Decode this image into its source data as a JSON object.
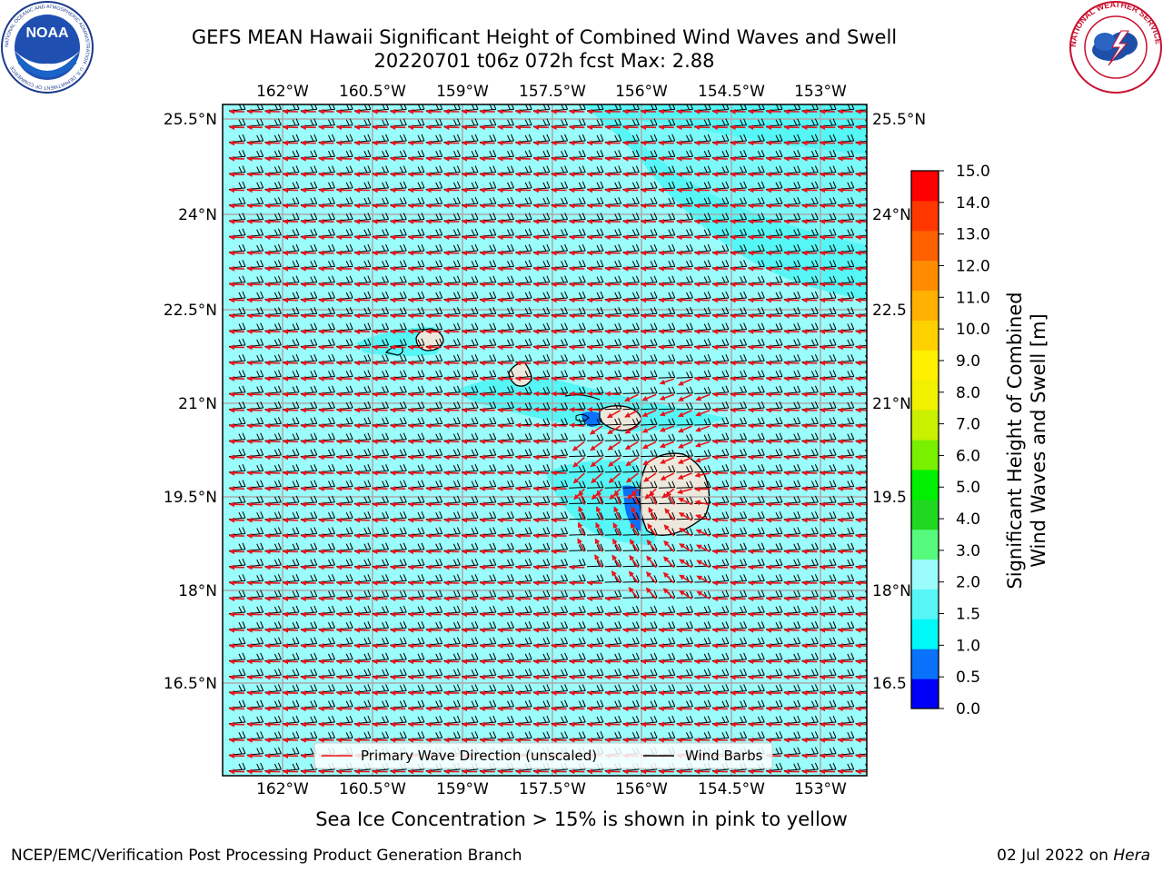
{
  "title_line1": "GEFS MEAN Hawaii Significant Height of Combined Wind Waves and Swell",
  "title_line2": "20220701 t06z 072h fcst   Max: 2.88",
  "logo_left": {
    "text": "NOAA",
    "ring_text": "NATIONAL OCEANIC AND ATMOSPHERIC ADMINISTRATION · U.S. DEPARTMENT OF COMMERCE"
  },
  "logo_right": {
    "ring_text": "NATIONAL WEATHER SERVICE"
  },
  "map": {
    "lon_labels": [
      "162°W",
      "160.5°W",
      "159°W",
      "157.5°W",
      "156°W",
      "154.5°W",
      "153°W"
    ],
    "lat_labels_left": [
      "25.5°N",
      "24°N",
      "22.5°N",
      "21°N",
      "19.5°N",
      "18°N",
      "16.5°N"
    ],
    "lat_labels_right": [
      "25.5°N",
      "24°N",
      "22.5",
      "21°N",
      "19.5",
      "18°N",
      "16.5"
    ],
    "legend": {
      "wave_direction": "Primary Wave Direction (unscaled)",
      "wind_barbs": "Wind Barbs"
    },
    "colors": {
      "ocean_light": "#9afcfb",
      "ocean_mid": "#56f6f6",
      "land": "#ece9dc",
      "arrow": "#e8141b",
      "barb": "#000000",
      "grid": "#aaaaaa"
    }
  },
  "colorbar": {
    "label_line1": "Significant Height of Combined",
    "label_line2": "Wind Waves and Swell [m]",
    "ticks": [
      "15.0",
      "14.0",
      "13.0",
      "12.0",
      "11.0",
      "10.0",
      "9.0",
      "8.0",
      "7.0",
      "6.0",
      "5.0",
      "4.0",
      "3.0",
      "2.0",
      "1.5",
      "1.0",
      "0.5",
      "0.0"
    ],
    "bin_colors": [
      "#0000f8",
      "#0a72fa",
      "#00f8f8",
      "#56f6f6",
      "#9afcfb",
      "#56fa7d",
      "#20d820",
      "#00f000",
      "#78f000",
      "#c8f000",
      "#f0f000",
      "#fff000",
      "#ffd000",
      "#ffb000",
      "#ff8c00",
      "#ff6000",
      "#ff3800",
      "#ff0000"
    ]
  },
  "ice_note": "Sea Ice Concentration > 15% is shown in pink to yellow",
  "footer_left": "NCEP/EMC/Verification Post Processing Product Generation Branch",
  "footer_right_text": "02 Jul 2022 on ",
  "footer_right_italic": "Hera"
}
